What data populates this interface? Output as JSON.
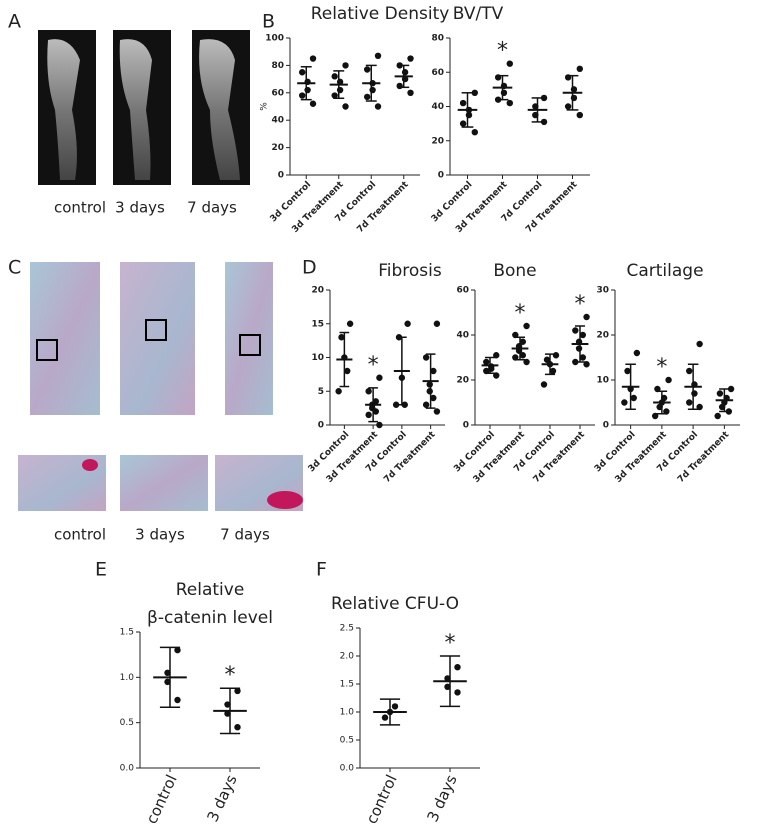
{
  "panel_labels": [
    "A",
    "B",
    "C",
    "D",
    "E",
    "F"
  ],
  "image_captions": {
    "A": [
      "control",
      "3  days",
      "7 days"
    ],
    "C": [
      "control",
      "3  days",
      "7 days"
    ]
  },
  "chart_data": [
    {
      "type": "dotplot",
      "title": "Relative Density",
      "y_label": "%",
      "categories": [
        "3d Control",
        "3d Treatment",
        "7d Control",
        "7d Treatment"
      ],
      "ylim": [
        0,
        100
      ],
      "yticks": [
        0,
        20,
        40,
        60,
        80,
        100
      ],
      "groups": [
        {
          "points": [
            85,
            75,
            68,
            62,
            58,
            52
          ],
          "mean": 67,
          "sd": 12
        },
        {
          "points": [
            80,
            72,
            68,
            62,
            58,
            50
          ],
          "mean": 66,
          "sd": 10
        },
        {
          "points": [
            87,
            77,
            67,
            62,
            57,
            50
          ],
          "mean": 67,
          "sd": 13
        },
        {
          "points": [
            85,
            80,
            75,
            70,
            65,
            60
          ],
          "mean": 72,
          "sd": 8
        }
      ],
      "significance": [
        null,
        null,
        null,
        null
      ]
    },
    {
      "type": "dotplot",
      "title": "BV/TV",
      "categories": [
        "3d Control",
        "3d Treatment",
        "7d Control",
        "7d Treatment"
      ],
      "ylim": [
        0,
        80
      ],
      "yticks": [
        0,
        20,
        40,
        60,
        80
      ],
      "groups": [
        {
          "points": [
            48,
            42,
            38,
            35,
            30,
            25
          ],
          "mean": 38,
          "sd": 10
        },
        {
          "points": [
            65,
            57,
            52,
            48,
            44,
            42
          ],
          "mean": 51,
          "sd": 7
        },
        {
          "points": [
            45,
            40,
            35,
            31
          ],
          "mean": 38,
          "sd": 7
        },
        {
          "points": [
            62,
            57,
            50,
            45,
            40,
            35
          ],
          "mean": 48,
          "sd": 10
        }
      ],
      "significance": [
        null,
        "*",
        null,
        null
      ]
    },
    {
      "type": "dotplot",
      "title": "Fibrosis",
      "categories": [
        "3d Control",
        "3d Treatment",
        "7d Control",
        "7d Treatment"
      ],
      "ylim": [
        0,
        20
      ],
      "yticks": [
        0,
        5,
        10,
        15,
        20
      ],
      "groups": [
        {
          "points": [
            15,
            13,
            10,
            8,
            5
          ],
          "mean": 9.7,
          "sd": 4
        },
        {
          "points": [
            7,
            5,
            3.5,
            3,
            2.5,
            2,
            1.5,
            0
          ],
          "mean": 3,
          "sd": 2.5
        },
        {
          "points": [
            15,
            13,
            7,
            3,
            3
          ],
          "mean": 8,
          "sd": 5
        },
        {
          "points": [
            15,
            10,
            8,
            6,
            5,
            4,
            3,
            2
          ],
          "mean": 6.5,
          "sd": 4
        }
      ],
      "significance": [
        null,
        "*",
        null,
        null
      ]
    },
    {
      "type": "dotplot",
      "title": "Bone",
      "categories": [
        "3d Control",
        "3d Treatment",
        "7d Control",
        "7d Treatment"
      ],
      "ylim": [
        0,
        60
      ],
      "yticks": [
        0,
        20,
        40,
        60
      ],
      "groups": [
        {
          "points": [
            31,
            28,
            26,
            25,
            24,
            22
          ],
          "mean": 26.5,
          "sd": 3.5
        },
        {
          "points": [
            44,
            40,
            37,
            35,
            33,
            31,
            30,
            28
          ],
          "mean": 34,
          "sd": 5
        },
        {
          "points": [
            31,
            29,
            27,
            24,
            18
          ],
          "mean": 27,
          "sd": 4.5
        },
        {
          "points": [
            48,
            42,
            40,
            37,
            34,
            30,
            28,
            27
          ],
          "mean": 36,
          "sd": 8
        }
      ],
      "significance": [
        null,
        "*",
        null,
        "*"
      ]
    },
    {
      "type": "dotplot",
      "title": "Cartilage",
      "categories": [
        "3d Control",
        "3d Treatment",
        "7d Control",
        "7d Treatment"
      ],
      "ylim": [
        0,
        30
      ],
      "yticks": [
        0,
        10,
        20,
        30
      ],
      "groups": [
        {
          "points": [
            16,
            12,
            8,
            6,
            5
          ],
          "mean": 8.5,
          "sd": 5
        },
        {
          "points": [
            10,
            8,
            6,
            5,
            4,
            3,
            2
          ],
          "mean": 5,
          "sd": 2.5
        },
        {
          "points": [
            18,
            12,
            9,
            7,
            5,
            4
          ],
          "mean": 8.5,
          "sd": 5
        },
        {
          "points": [
            8,
            7,
            6,
            5,
            4,
            3,
            2
          ],
          "mean": 5.5,
          "sd": 2.5
        }
      ],
      "significance": [
        null,
        "*",
        null,
        null
      ]
    },
    {
      "type": "dotplot",
      "title": [
        "Relative",
        "β-catenin level"
      ],
      "categories": [
        "control",
        "3 days"
      ],
      "ylim": [
        0,
        1.5
      ],
      "yticks": [
        {
          "value": 0,
          "label": "0.0"
        },
        0.5,
        {
          "value": 1,
          "label": "1.0"
        },
        1.5
      ],
      "groups": [
        {
          "points": [
            1.3,
            1.05,
            0.95,
            0.75
          ],
          "mean": 1.0,
          "sd": 0.33
        },
        {
          "points": [
            0.85,
            0.7,
            0.6,
            0.45
          ],
          "mean": 0.63,
          "sd": 0.25
        }
      ],
      "significance": [
        null,
        "*"
      ]
    },
    {
      "type": "dotplot",
      "title": "Relative CFU-O",
      "categories": [
        "control",
        "3 days"
      ],
      "ylim": [
        0,
        2.5
      ],
      "yticks": [
        {
          "value": 0,
          "label": "0.0"
        },
        0.5,
        {
          "value": 1,
          "label": "1.0"
        },
        1.5,
        {
          "value": 2,
          "label": "2.0"
        },
        2.5
      ],
      "groups": [
        {
          "points": [
            1.1,
            1.0,
            0.9
          ],
          "mean": 1.0,
          "sd": 0.23
        },
        {
          "points": [
            1.8,
            1.6,
            1.45,
            1.35
          ],
          "mean": 1.55,
          "sd": 0.45
        }
      ],
      "significance": [
        null,
        "*"
      ]
    }
  ]
}
